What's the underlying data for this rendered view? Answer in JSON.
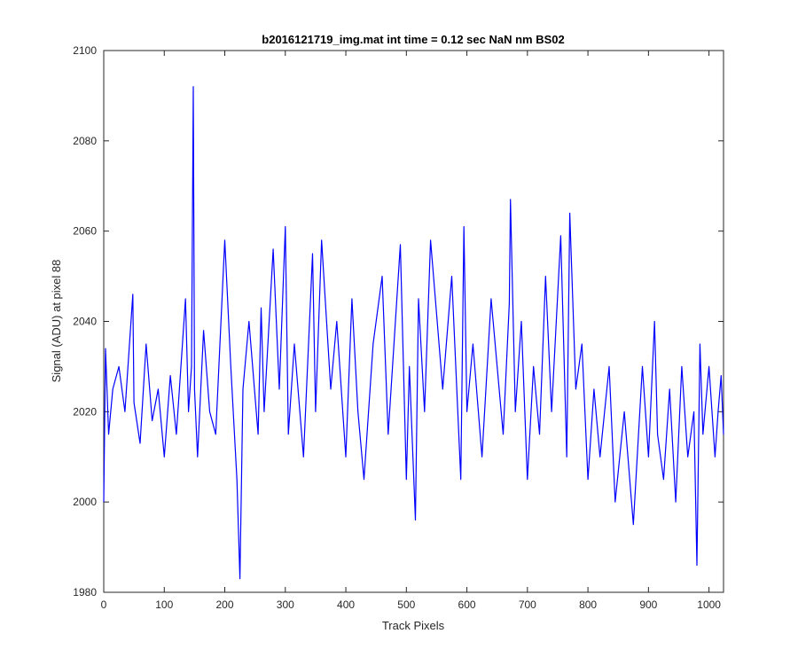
{
  "chart_data": {
    "type": "line",
    "title": "b2016121719_img.mat int time = 0.12 sec  NaN nm BS02",
    "xlabel": "Track Pixels",
    "ylabel": "Signal (ADU) at pixel 88",
    "xlim": [
      0,
      1024
    ],
    "ylim": [
      1980,
      2100
    ],
    "xticks": [
      0,
      100,
      200,
      300,
      400,
      500,
      600,
      700,
      800,
      900,
      1000
    ],
    "yticks": [
      1980,
      2000,
      2020,
      2040,
      2060,
      2080,
      2100
    ],
    "grid": false,
    "series": [
      {
        "color": "#0000ff",
        "x": [
          0,
          3,
          8,
          15,
          25,
          35,
          48,
          50,
          60,
          70,
          80,
          90,
          100,
          110,
          120,
          135,
          140,
          145,
          148,
          150,
          155,
          165,
          175,
          185,
          200,
          210,
          220,
          225,
          230,
          240,
          255,
          260,
          265,
          280,
          290,
          300,
          305,
          315,
          330,
          345,
          350,
          360,
          375,
          385,
          400,
          410,
          420,
          430,
          445,
          460,
          470,
          490,
          500,
          505,
          515,
          520,
          530,
          540,
          560,
          575,
          590,
          595,
          600,
          610,
          625,
          640,
          650,
          660,
          670,
          672,
          680,
          690,
          700,
          710,
          720,
          730,
          740,
          755,
          765,
          770,
          780,
          790,
          800,
          810,
          820,
          835,
          845,
          860,
          875,
          890,
          900,
          910,
          915,
          925,
          935,
          945,
          955,
          965,
          975,
          980,
          985,
          990,
          1000,
          1010,
          1015,
          1020,
          1024
        ],
        "y": [
          2000,
          2034,
          2015,
          2025,
          2030,
          2020,
          2046,
          2022,
          2013,
          2035,
          2018,
          2025,
          2010,
          2028,
          2015,
          2045,
          2020,
          2030,
          2092,
          2025,
          2010,
          2038,
          2020,
          2015,
          2058,
          2030,
          2005,
          1983,
          2025,
          2040,
          2015,
          2043,
          2020,
          2056,
          2025,
          2061,
          2015,
          2035,
          2010,
          2055,
          2020,
          2058,
          2025,
          2040,
          2010,
          2045,
          2020,
          2005,
          2035,
          2050,
          2015,
          2057,
          2005,
          2030,
          1996,
          2045,
          2020,
          2058,
          2025,
          2050,
          2005,
          2061,
          2020,
          2035,
          2010,
          2045,
          2030,
          2015,
          2044,
          2067,
          2020,
          2040,
          2005,
          2030,
          2015,
          2050,
          2020,
          2059,
          2010,
          2064,
          2025,
          2035,
          2005,
          2025,
          2010,
          2030,
          2000,
          2020,
          1995,
          2030,
          2010,
          2040,
          2015,
          2005,
          2025,
          2000,
          2030,
          2010,
          2020,
          1986,
          2035,
          2015,
          2030,
          2010,
          2020,
          2028,
          2015
        ]
      }
    ]
  }
}
